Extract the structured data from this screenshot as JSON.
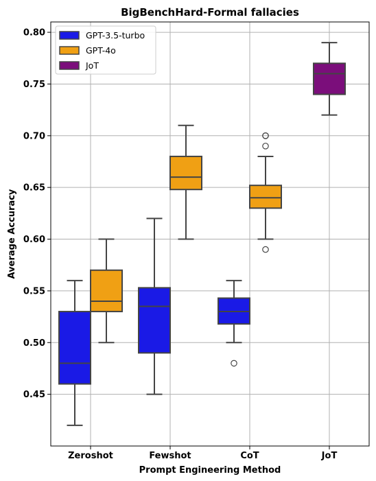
{
  "chart_data": {
    "type": "box",
    "title": "BigBenchHard-Formal fallacies",
    "xlabel": "Prompt Engineering Method",
    "ylabel": "Average Accuracy",
    "ylim": [
      0.4,
      0.81
    ],
    "yticks": [
      "0.45",
      "0.50",
      "0.55",
      "0.60",
      "0.65",
      "0.70",
      "0.75",
      "0.80"
    ],
    "grid": true,
    "legend_position": "top-left",
    "categories": [
      "Zeroshot",
      "Fewshot",
      "CoT",
      "JoT"
    ],
    "series": [
      {
        "name": "GPT-3.5-turbo",
        "color": "#1a1ae6",
        "boxes": [
          {
            "category": "Zeroshot",
            "whisker_low": 0.42,
            "q1": 0.46,
            "median": 0.48,
            "q3": 0.53,
            "whisker_high": 0.56,
            "outliers": []
          },
          {
            "category": "Fewshot",
            "whisker_low": 0.45,
            "q1": 0.49,
            "median": 0.535,
            "q3": 0.553,
            "whisker_high": 0.62,
            "outliers": []
          },
          {
            "category": "CoT",
            "whisker_low": 0.5,
            "q1": 0.518,
            "median": 0.53,
            "q3": 0.543,
            "whisker_high": 0.56,
            "outliers": [
              0.48
            ]
          }
        ]
      },
      {
        "name": "GPT-4o",
        "color": "#f0a014",
        "boxes": [
          {
            "category": "Zeroshot",
            "whisker_low": 0.5,
            "q1": 0.53,
            "median": 0.54,
            "q3": 0.57,
            "whisker_high": 0.6,
            "outliers": []
          },
          {
            "category": "Fewshot",
            "whisker_low": 0.6,
            "q1": 0.648,
            "median": 0.66,
            "q3": 0.68,
            "whisker_high": 0.71,
            "outliers": []
          },
          {
            "category": "CoT",
            "whisker_low": 0.6,
            "q1": 0.63,
            "median": 0.64,
            "q3": 0.652,
            "whisker_high": 0.68,
            "outliers": [
              0.59,
              0.69,
              0.7,
              0.7
            ]
          }
        ]
      },
      {
        "name": "JoT",
        "color": "#7b0e7b",
        "boxes": [
          {
            "category": "JoT",
            "whisker_low": 0.72,
            "q1": 0.74,
            "median": 0.76,
            "q3": 0.77,
            "whisker_high": 0.79,
            "outliers": []
          }
        ]
      }
    ]
  }
}
